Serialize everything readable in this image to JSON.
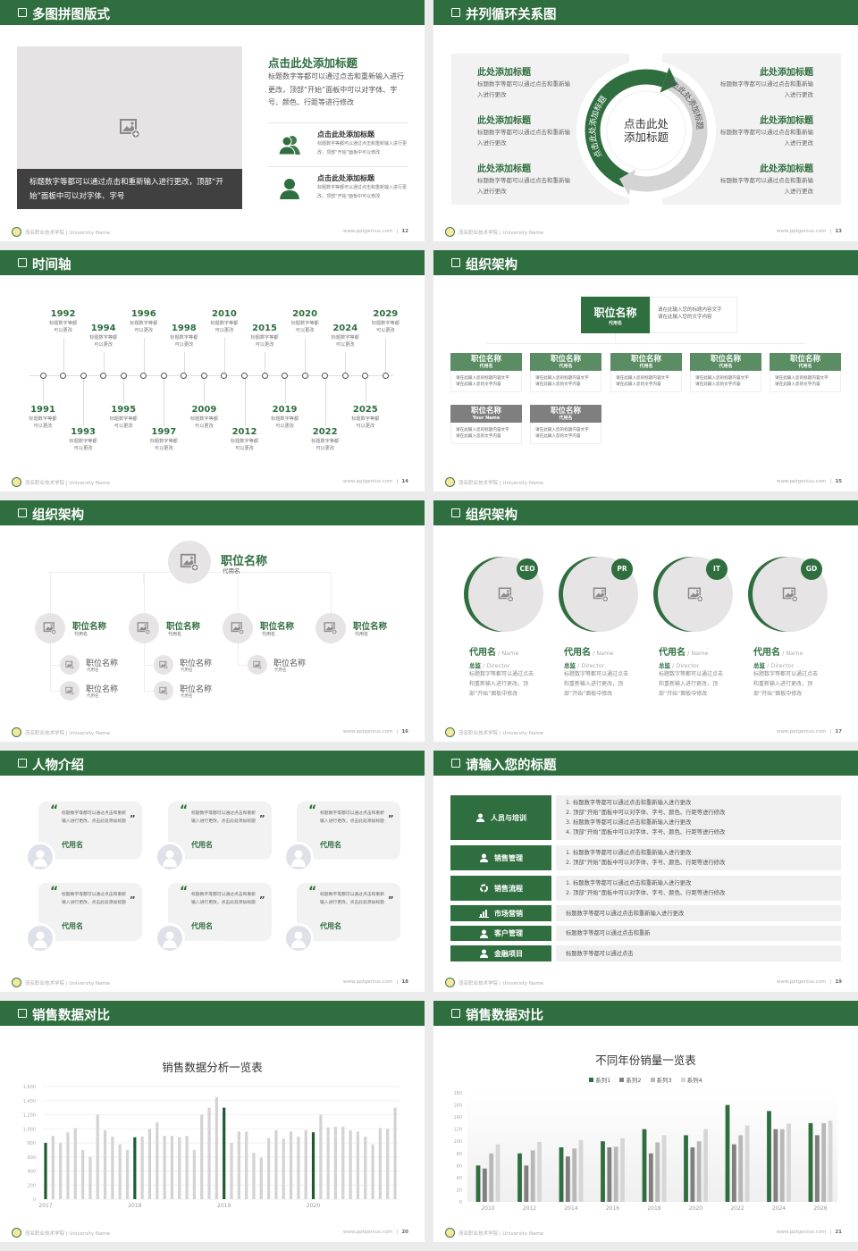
{
  "colors": {
    "brand_green": "#2f6e3f",
    "dark_caption": "#404040",
    "panel_gray": "#f2f2f2",
    "series1": "#2f6e3f",
    "series2": "#808080",
    "series3": "#b8b8b8",
    "series4": "#d6d6d6",
    "bar_gray": "#d3d3d3"
  },
  "footer": {
    "school": "茂名职业技术学院 | University Name",
    "site": "www.pptgenius.com"
  },
  "slides": [
    {
      "title": "多图拼图版式",
      "page": "12",
      "caption": "标题数字等都可以通过点击和重新输入进行更改，顶部“开始”面板中可以对字体、字号",
      "heading": "点击此处添加标题",
      "body": "标题数字等都可以通过点击和重新输入进行更改，顶部“开始”面板中可以对字体、字号、颜色、行距等进行修改",
      "items": [
        {
          "icon": "users-icon",
          "title": "点击此处添加标题",
          "text": "标题数字等都可以通过点击和重新输入进行更改，顶部“开始”面板中可以修改"
        },
        {
          "icon": "user-icon",
          "title": "点击此处添加标题",
          "text": "标题数字等都可以通过点击和重新输入进行更改，顶部“开始”面板中可以修改"
        }
      ]
    },
    {
      "title": "并列循环关系图",
      "page": "13",
      "center_lines": [
        "点击此处",
        "添加标题"
      ],
      "arc_left": "点击此处添加标题",
      "arc_right": "点击此处添加标题",
      "left_items": [
        {
          "title": "此处添加标题",
          "text": "标题数字等都可以通过点击和重新输入进行更改"
        },
        {
          "title": "此处添加标题",
          "text": "标题数字等都可以通过点击和重新输入进行更改"
        },
        {
          "title": "此处添加标题",
          "text": "标题数字等都可以通过点击和重新输入进行更改"
        }
      ],
      "right_items": [
        {
          "title": "此处添加标题",
          "text": "标题数字等都可以通过点击和重新输入进行更改"
        },
        {
          "title": "此处添加标题",
          "text": "标题数字等都可以通过点击和重新输入进行更改"
        },
        {
          "title": "此处添加标题",
          "text": "标题数字等都可以通过点击和重新输入进行更改"
        }
      ]
    },
    {
      "title": "时间轴",
      "page": "14",
      "events": [
        {
          "year": "1991",
          "text": "标题数字等都可以更改"
        },
        {
          "year": "1992",
          "text": "标题数字等都可以更改"
        },
        {
          "year": "1993",
          "text": "标题数字等都可以更改"
        },
        {
          "year": "1994",
          "text": "标题数字等都可以更改"
        },
        {
          "year": "1995",
          "text": "标题数字等都可以更改"
        },
        {
          "year": "1996",
          "text": "标题数字等都可以更改"
        },
        {
          "year": "1997",
          "text": "标题数字等都可以更改"
        },
        {
          "year": "1998",
          "text": "标题数字等都可以更改"
        },
        {
          "year": "2009",
          "text": "标题数字等都可以更改"
        },
        {
          "year": "2010",
          "text": "标题数字等都可以更改"
        },
        {
          "year": "2012",
          "text": "标题数字等都可以更改"
        },
        {
          "year": "2015",
          "text": "标题数字等都可以更改"
        },
        {
          "year": "2019",
          "text": "标题数字等都可以更改"
        },
        {
          "year": "2020",
          "text": "标题数字等都可以更改"
        },
        {
          "year": "2022",
          "text": "标题数字等都可以更改"
        },
        {
          "year": "2024",
          "text": "标题数字等都可以更改"
        },
        {
          "year": "2025",
          "text": "标题数字等都可以更改"
        },
        {
          "year": "2029",
          "text": "标题数字等都可以更改"
        }
      ]
    },
    {
      "title": "组织架构",
      "page": "15",
      "top": {
        "title": "职位名称",
        "sub": "代用名",
        "desc": [
          "请在此输入您的标题内容文字",
          "请在此输入您的文字内容"
        ]
      },
      "row1": [
        {
          "title": "职位名称",
          "sub": "代用名",
          "desc": [
            "请在此输入您的标题内容文字",
            "请在此输入您的文字内容"
          ]
        },
        {
          "title": "职位名称",
          "sub": "代用名",
          "desc": [
            "请在此输入您的标题内容文字",
            "请在此输入您的文字内容"
          ]
        },
        {
          "title": "职位名称",
          "sub": "代用名",
          "desc": [
            "请在此输入您的标题内容文字",
            "请在此输入您的文字内容"
          ]
        },
        {
          "title": "职位名称",
          "sub": "代用名",
          "desc": [
            "请在此输入您的标题内容文字",
            "请在此输入您的文字内容"
          ]
        },
        {
          "title": "职位名称",
          "sub": "代用名",
          "desc": [
            "请在此输入您的标题内容文字",
            "请在此输入您的文字内容"
          ]
        }
      ],
      "row2": [
        {
          "title": "职位名称",
          "sub": "Your Name",
          "desc": [
            "请在此输入您的标题内容文字",
            "请在此输入您的文字内容"
          ]
        },
        {
          "title": "职位名称",
          "sub": "代用名",
          "desc": [
            "请在此输入您的标题内容文字",
            "请在此输入您的文字内容"
          ]
        }
      ]
    },
    {
      "title": "组织架构",
      "page": "16",
      "top": {
        "title": "职位名称",
        "sub": "代用名"
      },
      "mid": [
        {
          "title": "职位名称",
          "sub": "代用名",
          "subs": [
            {
              "title": "职位名称",
              "sub": "代用名"
            },
            {
              "title": "职位名称",
              "sub": "代用名"
            }
          ]
        },
        {
          "title": "职位名称",
          "sub": "代用名",
          "subs": [
            {
              "title": "职位名称",
              "sub": "代用名"
            },
            {
              "title": "职位名称",
              "sub": "代用名"
            }
          ]
        },
        {
          "title": "职位名称",
          "sub": "代用名",
          "subs": [
            {
              "title": "职位名称",
              "sub": "代用名"
            }
          ]
        },
        {
          "title": "职位名称",
          "sub": "代用名",
          "subs": []
        }
      ]
    },
    {
      "title": "组织架构",
      "page": "17",
      "people": [
        {
          "badge": "CEO",
          "name": "代用名",
          "name_en": " / Name",
          "role": "总监",
          "role_en": " /  Director",
          "desc": "标题数字等都可以通过点击和重新输入进行更改，顶部“开始”面板中修改"
        },
        {
          "badge": "PR",
          "name": "代用名",
          "name_en": " / Name",
          "role": "总监",
          "role_en": " /  Director",
          "desc": "标题数字等都可以通过点击和重新输入进行更改，顶部“开始”面板中修改"
        },
        {
          "badge": "IT",
          "name": "代用名",
          "name_en": " / Name",
          "role": "总监",
          "role_en": " /  Director",
          "desc": "标题数字等都可以通过点击和重新输入进行更改，顶部“开始”面板中修改"
        },
        {
          "badge": "GD",
          "name": "代用名",
          "name_en": " / Name",
          "role": "总监",
          "role_en": " /  Director",
          "desc": "标题数字等都可以通过点击和重新输入进行更改，顶部“开始”面板中修改"
        }
      ]
    },
    {
      "title": "人物介绍",
      "page": "18",
      "cards": [
        {
          "quote": "标题数字等都可以通过点击和重新输入进行更改，点击此处添加标题",
          "name": "代用名"
        },
        {
          "quote": "标题数字等都可以通过点击和重新输入进行更改，点击此处添加标题",
          "name": "代用名"
        },
        {
          "quote": "标题数字等都可以通过点击和重新输入进行更改，点击此处添加标题",
          "name": "代用名"
        },
        {
          "quote": "标题数字等都可以通过点击和重新输入进行更改，点击此处添加标题",
          "name": "代用名"
        },
        {
          "quote": "标题数字等都可以通过点击和重新输入进行更改，点击此处添加标题",
          "name": "代用名"
        },
        {
          "quote": "标题数字等都可以通过点击和重新输入进行更改，点击此处添加标题",
          "name": "代用名"
        }
      ]
    },
    {
      "title": "请输入您的标题",
      "page": "19",
      "rows": [
        {
          "icon": "training-icon",
          "label": "人员与培训",
          "lines": [
            "1.   标题数字等都可以通过点击和重新输入进行更改",
            "2.   顶部“开始”面板中可以对字体、字号、颜色、行距等进行修改",
            "3.   标题数字等都可以通过点击和重新输入进行更改",
            "4.   顶部“开始”面板中可以对字体、字号、颜色、行距等进行修改"
          ]
        },
        {
          "icon": "sales-management-icon",
          "label": "销售管理",
          "lines": [
            "1.   标题数字等都可以通过点击和重新输入进行更改",
            "2.   顶部“开始”面板中可以对字体、字号、颜色、行距等进行修改"
          ]
        },
        {
          "icon": "cycle-icon",
          "label": "销售流程",
          "lines": [
            "1.   标题数字等都可以通过点击和重新输入进行更改",
            "2.   顶部“开始”面板中可以对字体、字号、颜色、行距等进行修改"
          ]
        },
        {
          "icon": "bar-chart-icon",
          "label": "市场营销",
          "lines": [
            "标题数字等都可以通过点击和重新输入进行更改"
          ]
        },
        {
          "icon": "customers-icon",
          "label": "客户管理",
          "lines": [
            "标题数字等都可以通过点击和重新"
          ]
        },
        {
          "icon": "finance-icon",
          "label": "金融项目",
          "lines": [
            "标题数字等都可以通过点击"
          ]
        }
      ]
    },
    {
      "title": "销售数据对比",
      "page": "20"
    },
    {
      "title": "销售数据对比",
      "page": "21"
    }
  ],
  "chart_data": [
    {
      "type": "bar",
      "title": "销售数据分析一览表",
      "ylim": [
        0,
        1600
      ],
      "yticks": [
        "0",
        "200",
        "400",
        "600",
        "800",
        "1,000",
        "1,200",
        "1,400",
        "1,600"
      ],
      "xticks": [
        "2017",
        "2018",
        "2019",
        "2020"
      ],
      "grid": true,
      "highlight_every": 12,
      "values": [
        800,
        900,
        800,
        950,
        1010,
        700,
        600,
        1200,
        980,
        890,
        780,
        700,
        880,
        890,
        1000,
        1090,
        900,
        900,
        880,
        900,
        700,
        1200,
        1300,
        1450,
        1300,
        800,
        960,
        960,
        660,
        590,
        870,
        980,
        860,
        960,
        890,
        980,
        950,
        1200,
        1020,
        1030,
        1030,
        980,
        960,
        890,
        780,
        1010,
        1000,
        1300
      ]
    },
    {
      "type": "bar",
      "title": "不同年份销量一览表",
      "ylim": [
        0,
        180
      ],
      "yticks": [
        "0",
        "20",
        "40",
        "60",
        "80",
        "100",
        "120",
        "140",
        "160",
        "180"
      ],
      "categories": [
        "2010",
        "2012",
        "2014",
        "2016",
        "2018",
        "2020",
        "2022",
        "2024",
        "2026"
      ],
      "legend": "top",
      "series": [
        {
          "name": "系列1",
          "values": [
            60,
            80,
            90,
            100,
            120,
            110,
            160,
            150,
            130
          ]
        },
        {
          "name": "系列2",
          "values": [
            55,
            60,
            75,
            90,
            80,
            90,
            95,
            120,
            110
          ]
        },
        {
          "name": "系列3",
          "values": [
            80,
            85,
            88,
            91,
            98,
            100,
            110,
            120,
            130
          ]
        },
        {
          "name": "系列4",
          "values": [
            95,
            99,
            102,
            105,
            110,
            120,
            126,
            129,
            134
          ]
        }
      ]
    }
  ]
}
